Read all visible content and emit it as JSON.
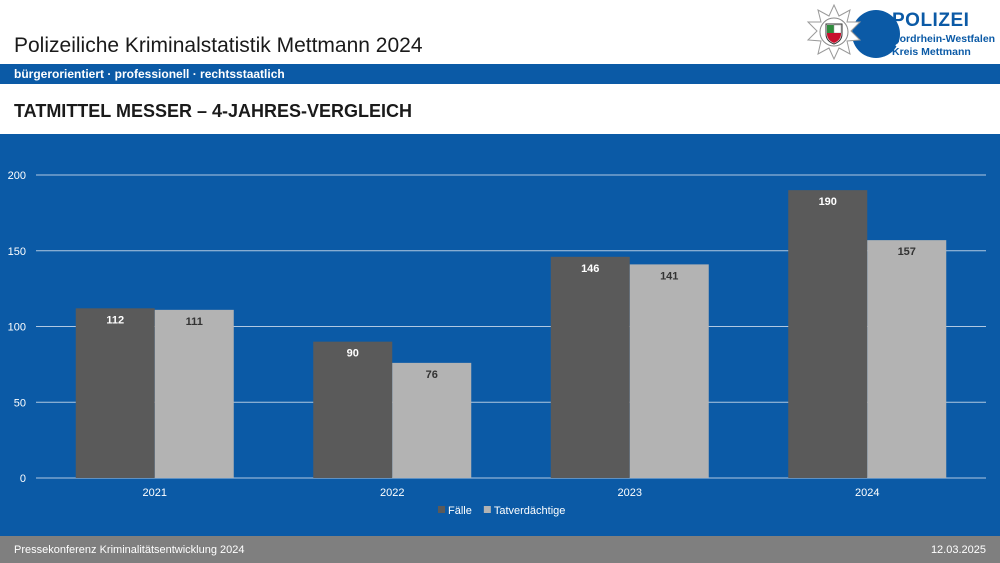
{
  "header": {
    "title": "Polizeiliche Kriminalstatistik Mettmann 2024",
    "tagline": "bürgerorientiert · professionell · rechtsstaatlich"
  },
  "logo": {
    "line1": "POLIZEI",
    "line2": "Nordrhein-Westfalen",
    "line3": "Kreis Mettmann",
    "icon": "police-star-icon"
  },
  "colors": {
    "brand_blue": "#0b5aa6",
    "series_faelle": "#5a5a5a",
    "series_tatverdaechtige": "#b3b3b3",
    "footer_gray": "#7f7f7f"
  },
  "chart_data": {
    "type": "bar",
    "title": "TATMITTEL MESSER – 4-JAHRES-VERGLEICH",
    "categories": [
      "2021",
      "2022",
      "2023",
      "2024"
    ],
    "series": [
      {
        "name": "Fälle",
        "values": [
          112,
          90,
          146,
          190
        ]
      },
      {
        "name": "Tatverdächtige",
        "values": [
          111,
          76,
          141,
          157
        ]
      }
    ],
    "ylim": [
      0,
      200
    ],
    "yticks": [
      "0",
      "50",
      "100",
      "150",
      "200"
    ],
    "grid": true,
    "legend": "bottom-center",
    "xlabel": "",
    "ylabel": ""
  },
  "footer": {
    "left": "Pressekonferenz Kriminalitätsentwicklung 2024",
    "right": "12.03.2025"
  }
}
